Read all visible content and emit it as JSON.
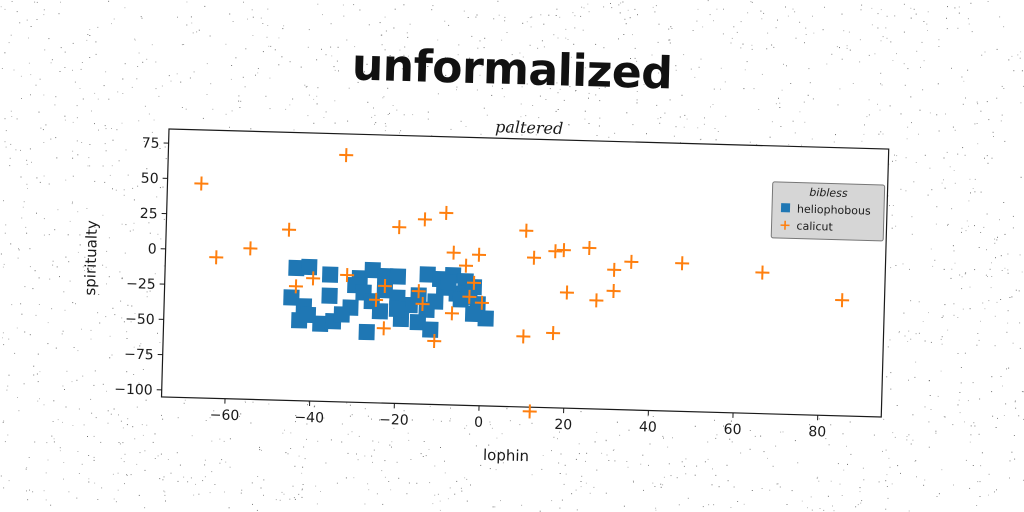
{
  "title": "unformalized",
  "chart_data": {
    "type": "scatter",
    "subtitle": "paltered",
    "xlabel": "lophin",
    "ylabel": "spiritualty",
    "xlim": [
      -75,
      95
    ],
    "ylim": [
      -105,
      85
    ],
    "xticks": [
      -60,
      -40,
      -20,
      0,
      20,
      40,
      60,
      80
    ],
    "yticks": [
      75,
      50,
      25,
      0,
      -25,
      -50,
      -75,
      -100
    ],
    "grid": false,
    "legend": {
      "title": "bibless",
      "position": "top-right"
    },
    "colors": {
      "heliophobous": "#1f77b4",
      "calicut": "#ff7f0e"
    },
    "series": [
      {
        "name": "heliophobous",
        "marker": "square",
        "points": [
          [
            -44,
            -11
          ],
          [
            -41,
            -10
          ],
          [
            -36,
            -15
          ],
          [
            -29,
            -17
          ],
          [
            -26,
            -11
          ],
          [
            -23,
            -15
          ],
          [
            -20,
            -15
          ],
          [
            -13,
            -13
          ],
          [
            -10,
            -16
          ],
          [
            -7,
            -13
          ],
          [
            -4,
            -17
          ],
          [
            -2,
            -21
          ],
          [
            -45,
            -32
          ],
          [
            -42,
            -38
          ],
          [
            -43,
            -48
          ],
          [
            -38,
            -50
          ],
          [
            -35,
            -48
          ],
          [
            -30,
            -22
          ],
          [
            -28,
            -27
          ],
          [
            -26,
            -33
          ],
          [
            -23,
            -25
          ],
          [
            -20,
            -30
          ],
          [
            -17,
            -35
          ],
          [
            -15,
            -28
          ],
          [
            -13,
            -38
          ],
          [
            -11,
            -32
          ],
          [
            -9,
            -22
          ],
          [
            -6,
            -26
          ],
          [
            -3,
            -28
          ],
          [
            -1,
            -33
          ],
          [
            1,
            -43
          ],
          [
            -19,
            -45
          ],
          [
            -24,
            -40
          ],
          [
            -15,
            -47
          ],
          [
            -12,
            -52
          ],
          [
            -27,
            -55
          ],
          [
            -31,
            -38
          ],
          [
            -36,
            -30
          ],
          [
            -20,
            -38
          ],
          [
            -8,
            -18
          ],
          [
            -5,
            -30
          ],
          [
            -2,
            -40
          ],
          [
            -41,
            -44
          ],
          [
            -33,
            -43
          ]
        ]
      },
      {
        "name": "calicut",
        "marker": "plus",
        "points": [
          [
            -67,
            47
          ],
          [
            -63,
            -5
          ],
          [
            -55,
            2
          ],
          [
            -46,
            16
          ],
          [
            -44,
            -24
          ],
          [
            -40,
            -18
          ],
          [
            -33,
            70
          ],
          [
            -32,
            -15
          ],
          [
            -25,
            -32
          ],
          [
            -23,
            -52
          ],
          [
            -20,
            20
          ],
          [
            -14,
            26
          ],
          [
            -9,
            31
          ],
          [
            -7,
            3
          ],
          [
            -4,
            -6
          ],
          [
            -1,
            2
          ],
          [
            -2,
            -18
          ],
          [
            0,
            -32
          ],
          [
            -7,
            -40
          ],
          [
            -11,
            -60
          ],
          [
            -14,
            -34
          ],
          [
            -23,
            -22
          ],
          [
            -15,
            -25
          ],
          [
            10,
            20
          ],
          [
            12,
            1
          ],
          [
            17,
            6
          ],
          [
            19,
            7
          ],
          [
            20,
            -23
          ],
          [
            25,
            9
          ],
          [
            27,
            -28
          ],
          [
            31,
            -21
          ],
          [
            31,
            -6
          ],
          [
            35,
            0
          ],
          [
            47,
            0
          ],
          [
            66,
            -5
          ],
          [
            85,
            -23
          ],
          [
            10,
            -55
          ],
          [
            17,
            -52
          ],
          [
            -3,
            -28
          ],
          [
            12,
            -108
          ]
        ]
      }
    ]
  }
}
